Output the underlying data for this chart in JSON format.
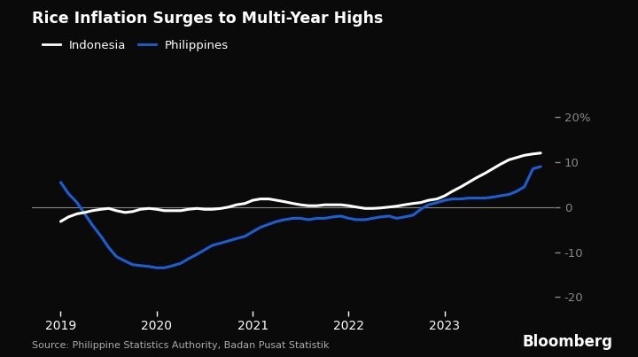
{
  "title": "Rice Inflation Surges to Multi-Year Highs",
  "source": "Source: Philippine Statistics Authority, Badan Pusat Statistik",
  "bloomberg": "Bloomberg",
  "background_color": "#0a0a0a",
  "text_color": "#ffffff",
  "indonesia_color": "#ffffff",
  "philippines_color": "#1a5fd4",
  "zero_line_color": "#888888",
  "ylabel_right": [
    "20%",
    "10",
    "0",
    "-10",
    "-20"
  ],
  "ytick_values": [
    20,
    10,
    0,
    -10,
    -20
  ],
  "ylim": [
    -23,
    23
  ],
  "xlim_start": 2018.7,
  "xlim_end": 2024.15,
  "xtick_years": [
    2019,
    2020,
    2021,
    2022,
    2023
  ],
  "indonesia": {
    "dates": [
      2019.0,
      2019.08,
      2019.17,
      2019.25,
      2019.33,
      2019.42,
      2019.5,
      2019.58,
      2019.67,
      2019.75,
      2019.83,
      2019.92,
      2020.0,
      2020.08,
      2020.17,
      2020.25,
      2020.33,
      2020.42,
      2020.5,
      2020.58,
      2020.67,
      2020.75,
      2020.83,
      2020.92,
      2021.0,
      2021.08,
      2021.17,
      2021.25,
      2021.33,
      2021.42,
      2021.5,
      2021.58,
      2021.67,
      2021.75,
      2021.83,
      2021.92,
      2022.0,
      2022.08,
      2022.17,
      2022.25,
      2022.33,
      2022.42,
      2022.5,
      2022.58,
      2022.67,
      2022.75,
      2022.83,
      2022.92,
      2023.0,
      2023.08,
      2023.17,
      2023.25,
      2023.33,
      2023.42,
      2023.5,
      2023.58,
      2023.67,
      2023.75,
      2023.83,
      2023.92,
      2024.0
    ],
    "values": [
      -3.2,
      -2.2,
      -1.5,
      -1.2,
      -0.8,
      -0.5,
      -0.3,
      -0.8,
      -1.2,
      -1.0,
      -0.5,
      -0.3,
      -0.5,
      -0.8,
      -0.8,
      -0.8,
      -0.5,
      -0.3,
      -0.5,
      -0.5,
      -0.3,
      0.0,
      0.5,
      0.8,
      1.5,
      1.8,
      1.8,
      1.5,
      1.2,
      0.8,
      0.5,
      0.3,
      0.3,
      0.5,
      0.5,
      0.5,
      0.3,
      0.0,
      -0.3,
      -0.3,
      -0.2,
      0.0,
      0.2,
      0.5,
      0.8,
      1.0,
      1.5,
      1.8,
      2.5,
      3.5,
      4.5,
      5.5,
      6.5,
      7.5,
      8.5,
      9.5,
      10.5,
      11.0,
      11.5,
      11.8,
      12.0
    ]
  },
  "philippines": {
    "dates": [
      2019.0,
      2019.08,
      2019.17,
      2019.25,
      2019.33,
      2019.42,
      2019.5,
      2019.58,
      2019.67,
      2019.75,
      2019.83,
      2019.92,
      2020.0,
      2020.08,
      2020.17,
      2020.25,
      2020.33,
      2020.42,
      2020.5,
      2020.58,
      2020.67,
      2020.75,
      2020.83,
      2020.92,
      2021.0,
      2021.08,
      2021.17,
      2021.25,
      2021.33,
      2021.42,
      2021.5,
      2021.58,
      2021.67,
      2021.75,
      2021.83,
      2021.92,
      2022.0,
      2022.08,
      2022.17,
      2022.25,
      2022.33,
      2022.42,
      2022.5,
      2022.58,
      2022.67,
      2022.75,
      2022.83,
      2022.92,
      2023.0,
      2023.08,
      2023.17,
      2023.25,
      2023.33,
      2023.42,
      2023.5,
      2023.58,
      2023.67,
      2023.75,
      2023.83,
      2023.92,
      2024.0
    ],
    "values": [
      5.5,
      3.0,
      1.0,
      -1.5,
      -4.0,
      -6.5,
      -9.0,
      -11.0,
      -12.0,
      -12.8,
      -13.0,
      -13.2,
      -13.5,
      -13.5,
      -13.0,
      -12.5,
      -11.5,
      -10.5,
      -9.5,
      -8.5,
      -8.0,
      -7.5,
      -7.0,
      -6.5,
      -5.5,
      -4.5,
      -3.8,
      -3.2,
      -2.8,
      -2.5,
      -2.5,
      -2.8,
      -2.5,
      -2.5,
      -2.2,
      -2.0,
      -2.5,
      -2.8,
      -2.8,
      -2.5,
      -2.2,
      -2.0,
      -2.5,
      -2.2,
      -1.8,
      -0.5,
      0.5,
      1.0,
      1.5,
      1.8,
      1.8,
      2.0,
      2.0,
      2.0,
      2.2,
      2.5,
      2.8,
      3.5,
      4.5,
      8.5,
      9.0
    ]
  }
}
